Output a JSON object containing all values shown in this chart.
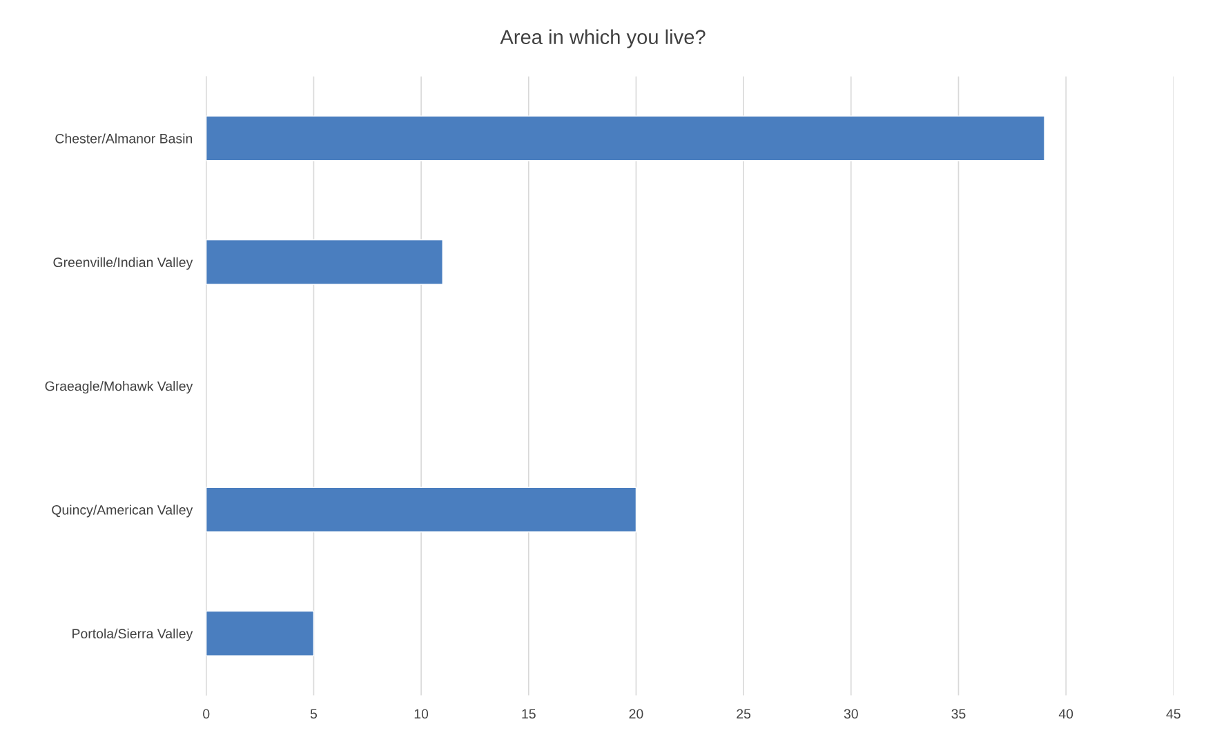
{
  "chart_data": {
    "type": "bar",
    "orientation": "horizontal",
    "title": "Area in which you live?",
    "categories": [
      "Chester/Almanor Basin",
      "Greenville/Indian Valley",
      "Graeagle/Mohawk Valley",
      "Quincy/American Valley",
      "Portola/Sierra Valley"
    ],
    "values": [
      39,
      11,
      null,
      20,
      5
    ],
    "color": "#4a7ebf",
    "xlim": [
      0,
      45
    ],
    "xticks": [
      0,
      5,
      10,
      15,
      20,
      25,
      30,
      35,
      40,
      45
    ],
    "grid": "x",
    "legend": false
  }
}
